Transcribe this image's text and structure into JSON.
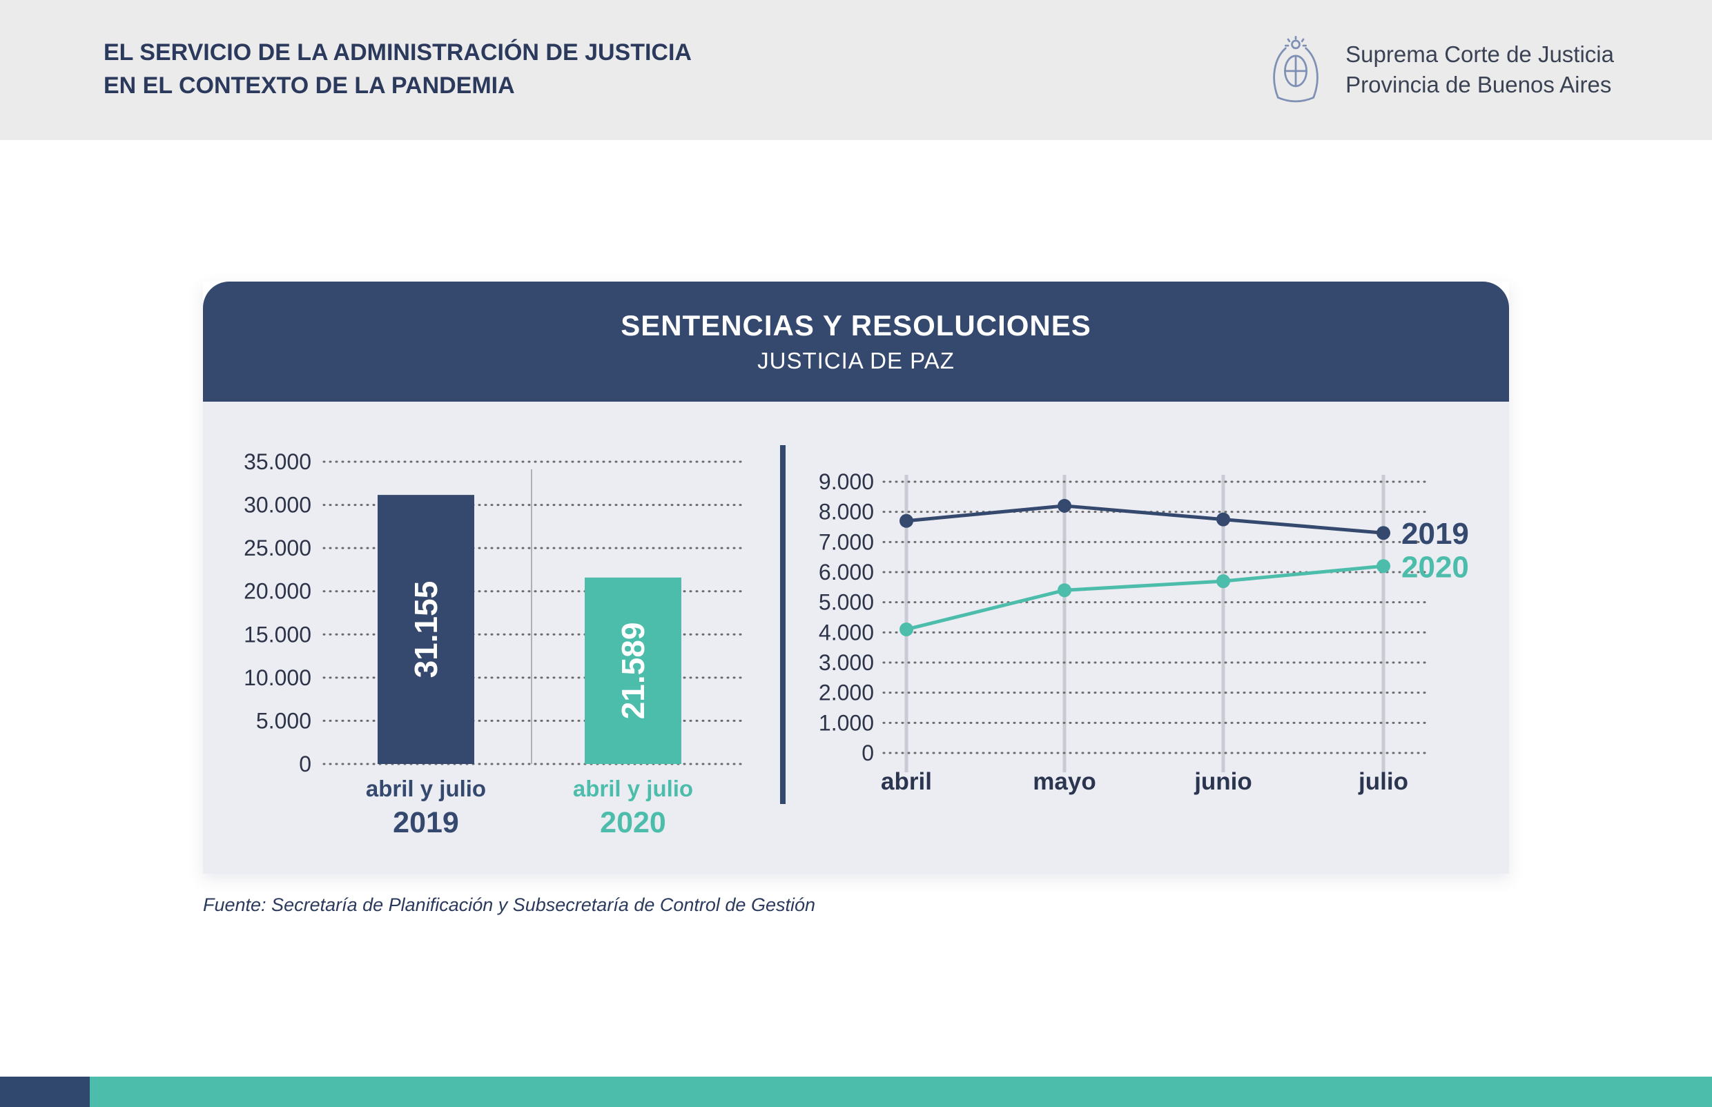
{
  "header": {
    "title_line1": "EL SERVICIO DE LA ADMINISTRACIÓN DE JUSTICIA",
    "title_line2": "EN EL CONTEXTO DE LA PANDEMIA",
    "org_name": "Suprema Corte de Justicia",
    "org_region": "Provincia de Buenos Aires"
  },
  "card": {
    "title": "SENTENCIAS Y RESOLUCIONES",
    "subtitle": "JUSTICIA DE PAZ"
  },
  "source_note": "Fuente: Secretaría de Planificación y Subsecretaría de Control de Gestión",
  "colors": {
    "navy": "#35496F",
    "teal": "#4DBDAB",
    "dark_text": "#2E3448",
    "grid_dot": "#6B6B6B",
    "vline_gray": "#C8CBD3",
    "mid_line_gray": "#ABAFBA",
    "header_bg": "#EBEBEB",
    "card_body_bg": "#EBEDF3"
  },
  "chart_data": [
    {
      "type": "bar",
      "title": "SENTENCIAS Y RESOLUCIONES — JUSTICIA DE PAZ",
      "categories": [
        "abril y julio 2019",
        "abril y julio 2020"
      ],
      "values": [
        31155,
        21589
      ],
      "value_labels": [
        "31.155",
        "21.589"
      ],
      "category_line1": [
        "abril y julio",
        "abril y julio"
      ],
      "category_line2": [
        "2019",
        "2020"
      ],
      "bar_colors": [
        "#35496F",
        "#4DBDAB"
      ],
      "ylim": [
        0,
        35000
      ],
      "ytick_step": 5000,
      "ytick_labels": [
        "0",
        "5.000",
        "10.000",
        "15.000",
        "20.000",
        "25.000",
        "30.000",
        "35.000"
      ],
      "grid": "horizontal-dotted"
    },
    {
      "type": "line",
      "title": "SENTENCIAS Y RESOLUCIONES — JUSTICIA DE PAZ (mensual)",
      "categories": [
        "abril",
        "mayo",
        "junio",
        "julio"
      ],
      "series": [
        {
          "name": "2019",
          "color": "#35496F",
          "values": [
            7700,
            8200,
            7750,
            7300
          ]
        },
        {
          "name": "2020",
          "color": "#4DBDAB",
          "values": [
            4100,
            5400,
            5700,
            6200
          ]
        }
      ],
      "ylim": [
        0,
        9000
      ],
      "ytick_step": 1000,
      "ytick_labels": [
        "0",
        "1.000",
        "2.000",
        "3.000",
        "4.000",
        "5.000",
        "6.000",
        "7.000",
        "8.000",
        "9.000"
      ],
      "grid": "horizontal-dotted + vertical-month-lines",
      "legend_position": "right-of-last-points"
    }
  ]
}
